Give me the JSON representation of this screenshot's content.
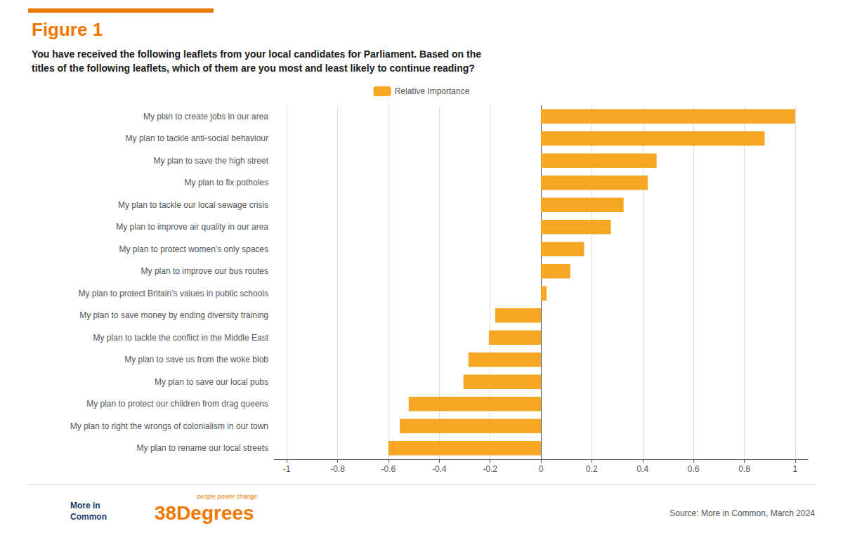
{
  "chart_data": {
    "type": "bar",
    "orientation": "horizontal",
    "title": "Figure 1",
    "subtitle": "You have received the following leaflets from your local candidates for Parliament. Based on the\ntitles of the following leaflets, which of them are you most and least likely to continue reading?",
    "categories": [
      "My plan to rename our local streets",
      "My plan to right the wrongs of colonialism in our town",
      "My plan to protect our children from drag queens",
      "My plan to save our local pubs",
      "My plan to save us from the woke blob",
      "My plan to tackle the conflict in the Middle East",
      "My plan to save money by ending diversity training",
      "My plan to protect Britain’s values in public schools",
      "My plan to improve our bus routes",
      "My plan to protect women’s only spaces",
      "My plan to improve air quality in our area",
      "My plan to tackle our local sewage crisis",
      "My plan to fix potholes",
      "My plan to save the high street",
      "My plan to tackle anti-social behaviour",
      "My plan to create jobs in our area"
    ],
    "series": [
      {
        "name": "Relative Importance",
        "color": "#F5A623",
        "values": [
          -0.6,
          -0.555,
          -0.52,
          -0.305,
          -0.285,
          -0.205,
          -0.18,
          0.022,
          0.115,
          0.17,
          0.275,
          0.325,
          0.42,
          0.455,
          0.88,
          1.0
        ]
      }
    ],
    "xlim": [
      -1.05,
      1.05
    ],
    "xticks": [
      -1,
      -0.8,
      -0.6,
      -0.4,
      -0.2,
      0,
      0.2,
      0.4,
      0.6,
      0.8,
      1
    ],
    "grid": true,
    "legend": "top",
    "annotations": [
      "Source: More in Common, March 2024",
      "More in\nCommon",
      "38Degrees",
      "people power change"
    ]
  }
}
